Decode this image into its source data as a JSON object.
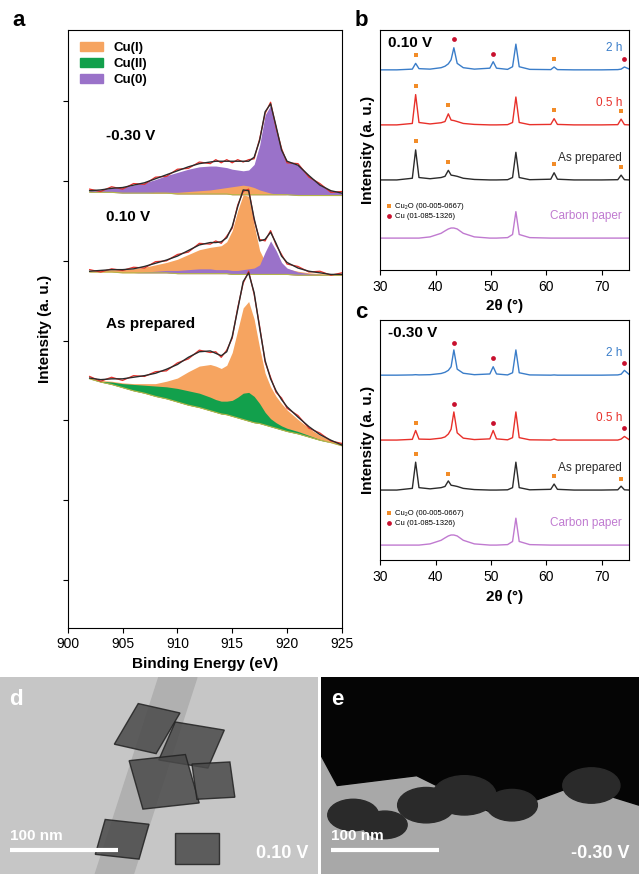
{
  "chart_data": [
    {
      "panel_label": "a",
      "type": "area",
      "xlabel": "Binding Energy (eV)",
      "ylabel": "Intensity (a. u.)",
      "x": [
        902,
        903,
        904,
        905,
        906,
        907,
        908,
        909,
        910,
        911,
        912,
        913,
        913.5,
        914,
        914.5,
        915,
        915.5,
        916,
        916.5,
        917,
        917.5,
        918,
        918.5,
        919,
        919.5,
        920,
        921,
        922,
        923,
        924,
        925
      ],
      "xlim": [
        900,
        925
      ],
      "xticks": [
        900,
        905,
        910,
        915,
        920,
        925
      ],
      "ylim": [
        0,
        7.5
      ],
      "yticks": [
        0.6,
        1.6,
        2.6,
        3.6,
        4.6,
        5.6,
        6.6
      ],
      "tick_labels": "x",
      "legend": "upper left",
      "series": [
        {
          "name": "Cu(I)",
          "color": "#f6a460"
        },
        {
          "name": "Cu(II)",
          "color": "#12a04c"
        },
        {
          "name": "Cu(0)",
          "color": "#9a72c9"
        }
      ],
      "spectra": [
        {
          "label": "-0.30 V",
          "background": [
            5.46,
            5.46,
            5.46,
            5.45,
            5.45,
            5.45,
            5.45,
            5.45,
            5.44,
            5.44,
            5.44,
            5.44,
            5.44,
            5.44,
            5.44,
            5.43,
            5.43,
            5.43,
            5.43,
            5.43,
            5.43,
            5.43,
            5.43,
            5.43,
            5.43,
            5.43,
            5.42,
            5.42,
            5.42,
            5.42,
            5.42
          ],
          "data": [
            5.5,
            5.47,
            5.53,
            5.5,
            5.57,
            5.56,
            5.65,
            5.66,
            5.75,
            5.76,
            5.84,
            5.82,
            5.87,
            5.83,
            5.87,
            5.83,
            5.87,
            5.84,
            5.87,
            5.88,
            6.13,
            6.45,
            6.59,
            6.27,
            6.01,
            5.83,
            5.82,
            5.65,
            5.57,
            5.46,
            5.47
          ],
          "fit": [
            5.48,
            5.49,
            5.51,
            5.52,
            5.55,
            5.58,
            5.63,
            5.68,
            5.73,
            5.78,
            5.82,
            5.84,
            5.85,
            5.85,
            5.85,
            5.85,
            5.85,
            5.85,
            5.85,
            5.9,
            6.11,
            6.47,
            6.57,
            6.29,
            5.99,
            5.85,
            5.8,
            5.67,
            5.55,
            5.48,
            5.45
          ],
          "components": {
            "Cu(0)": [
              5.48,
              5.49,
              5.51,
              5.52,
              5.55,
              5.58,
              5.62,
              5.67,
              5.71,
              5.75,
              5.78,
              5.79,
              5.79,
              5.78,
              5.77,
              5.75,
              5.74,
              5.73,
              5.74,
              5.81,
              6.05,
              6.43,
              6.55,
              6.28,
              5.98,
              5.85,
              5.8,
              5.67,
              5.55,
              5.48,
              5.45
            ],
            "Cu(I)": [
              5.46,
              5.46,
              5.46,
              5.45,
              5.45,
              5.45,
              5.46,
              5.46,
              5.46,
              5.47,
              5.48,
              5.49,
              5.5,
              5.51,
              5.52,
              5.53,
              5.54,
              5.55,
              5.54,
              5.52,
              5.49,
              5.47,
              5.45,
              5.44,
              5.44,
              5.43,
              5.42,
              5.42,
              5.42,
              5.42,
              5.42
            ]
          }
        },
        {
          "label": "0.10 V",
          "background": [
            4.46,
            4.46,
            4.46,
            4.45,
            4.45,
            4.45,
            4.45,
            4.45,
            4.44,
            4.44,
            4.44,
            4.44,
            4.44,
            4.44,
            4.44,
            4.43,
            4.43,
            4.43,
            4.43,
            4.43,
            4.43,
            4.43,
            4.43,
            4.43,
            4.43,
            4.43,
            4.42,
            4.42,
            4.42,
            4.42,
            4.42
          ],
          "data": [
            4.49,
            4.46,
            4.5,
            4.48,
            4.52,
            4.51,
            4.59,
            4.6,
            4.68,
            4.71,
            4.82,
            4.81,
            4.85,
            4.82,
            4.91,
            5.01,
            5.3,
            5.47,
            5.5,
            5.11,
            4.87,
            4.85,
            4.98,
            4.8,
            4.68,
            4.56,
            4.53,
            4.46,
            4.47,
            4.42,
            4.45
          ],
          "fit": [
            4.47,
            4.48,
            4.49,
            4.49,
            4.5,
            4.53,
            4.57,
            4.61,
            4.66,
            4.73,
            4.8,
            4.83,
            4.83,
            4.84,
            4.89,
            5.03,
            5.28,
            5.49,
            5.48,
            5.13,
            4.85,
            4.87,
            4.96,
            4.82,
            4.66,
            4.58,
            4.51,
            4.47,
            4.45,
            4.43,
            4.43
          ],
          "components": {
            "Cu(I)": [
              4.47,
              4.48,
              4.49,
              4.49,
              4.5,
              4.52,
              4.55,
              4.58,
              4.62,
              4.68,
              4.74,
              4.77,
              4.78,
              4.79,
              4.84,
              4.98,
              5.23,
              5.43,
              5.41,
              5.05,
              4.73,
              4.59,
              4.54,
              4.52,
              4.51,
              4.5,
              4.47,
              4.45,
              4.44,
              4.43,
              4.43
            ],
            "Cu(0)": [
              4.46,
              4.46,
              4.46,
              4.45,
              4.45,
              4.46,
              4.47,
              4.48,
              4.48,
              4.49,
              4.5,
              4.5,
              4.49,
              4.49,
              4.49,
              4.48,
              4.48,
              4.49,
              4.5,
              4.51,
              4.55,
              4.71,
              4.85,
              4.73,
              4.58,
              4.51,
              4.46,
              4.44,
              4.43,
              4.42,
              4.42
            ]
          }
        },
        {
          "label": "As prepared",
          "background": [
            3.12,
            3.08,
            3.05,
            3.01,
            2.97,
            2.94,
            2.9,
            2.87,
            2.83,
            2.79,
            2.76,
            2.72,
            2.7,
            2.68,
            2.67,
            2.65,
            2.63,
            2.61,
            2.59,
            2.57,
            2.56,
            2.54,
            2.52,
            2.5,
            2.48,
            2.46,
            2.43,
            2.39,
            2.35,
            2.32,
            2.28
          ],
          "data": [
            3.15,
            3.09,
            3.14,
            3.1,
            3.16,
            3.15,
            3.21,
            3.22,
            3.32,
            3.37,
            3.48,
            3.45,
            3.46,
            3.39,
            3.48,
            3.63,
            4.01,
            4.32,
            4.47,
            4.18,
            3.78,
            3.33,
            3.14,
            2.95,
            2.88,
            2.75,
            2.66,
            2.5,
            2.44,
            2.34,
            2.31
          ],
          "fit": [
            3.13,
            3.11,
            3.12,
            3.12,
            3.14,
            3.16,
            3.19,
            3.24,
            3.3,
            3.39,
            3.46,
            3.47,
            3.44,
            3.41,
            3.46,
            3.65,
            3.99,
            4.34,
            4.45,
            4.2,
            3.76,
            3.35,
            3.12,
            2.97,
            2.86,
            2.77,
            2.64,
            2.52,
            2.42,
            2.35,
            2.29
          ],
          "components": {
            "Cu(I)": [
              3.13,
              3.1,
              3.09,
              3.07,
              3.06,
              3.06,
              3.06,
              3.09,
              3.13,
              3.21,
              3.28,
              3.3,
              3.28,
              3.25,
              3.29,
              3.45,
              3.73,
              4.01,
              4.09,
              3.87,
              3.51,
              3.19,
              3.02,
              2.9,
              2.81,
              2.73,
              2.61,
              2.5,
              2.41,
              2.35,
              2.29
            ],
            "Cu(II)": [
              3.12,
              3.09,
              3.08,
              3.06,
              3.05,
              3.04,
              3.03,
              3.02,
              3.0,
              2.97,
              2.94,
              2.89,
              2.86,
              2.84,
              2.84,
              2.85,
              2.89,
              2.94,
              2.95,
              2.9,
              2.81,
              2.7,
              2.62,
              2.57,
              2.53,
              2.5,
              2.46,
              2.41,
              2.36,
              2.32,
              2.28
            ]
          }
        }
      ]
    },
    {
      "panel_label": "b",
      "type": "line",
      "title": "0.10 V",
      "xlabel": "2θ (°)",
      "ylabel": "Intensity (a. u.)",
      "x": [
        30,
        33,
        35.8,
        36.4,
        37,
        39,
        41,
        41.7,
        42.3,
        42.8,
        43.3,
        43.9,
        45,
        47,
        49.8,
        50.4,
        51,
        53,
        53.9,
        54.5,
        55.1,
        57,
        60.8,
        61.4,
        62,
        65,
        70,
        72.9,
        73.5,
        74.1,
        75
      ],
      "xlim": [
        30,
        75
      ],
      "xticks": [
        30,
        40,
        50,
        60,
        70
      ],
      "ylim": [
        0,
        10
      ],
      "tick_labels": "x",
      "legend": "lower left",
      "series": [
        {
          "name": "2 h",
          "color": "#3a7dc9",
          "values": [
            8.33,
            8.33,
            8.36,
            8.6,
            8.38,
            8.36,
            8.42,
            8.48,
            8.58,
            8.75,
            9.25,
            8.6,
            8.42,
            8.36,
            8.4,
            8.67,
            8.4,
            8.35,
            8.46,
            9.4,
            8.46,
            8.35,
            8.34,
            8.45,
            8.34,
            8.33,
            8.33,
            8.34,
            8.36,
            8.45,
            8.36
          ]
        },
        {
          "name": "0.5 h",
          "color": "#e8302a",
          "values": [
            6.04,
            6.04,
            6.1,
            7.3,
            6.14,
            6.08,
            6.13,
            6.18,
            6.5,
            6.24,
            6.22,
            6.18,
            6.1,
            6.06,
            6.04,
            6.04,
            6.04,
            6.05,
            6.14,
            7.2,
            6.14,
            6.05,
            6.06,
            6.3,
            6.06,
            6.04,
            6.04,
            6.05,
            6.28,
            6.05,
            6.04
          ]
        },
        {
          "name": "As prepared",
          "color": "#2b2b2b",
          "values": [
            3.75,
            3.75,
            3.82,
            5.0,
            3.85,
            3.8,
            3.85,
            3.9,
            4.15,
            3.95,
            3.93,
            3.9,
            3.82,
            3.77,
            3.75,
            3.75,
            3.75,
            3.76,
            3.85,
            4.9,
            3.85,
            3.76,
            3.78,
            4.05,
            3.78,
            3.75,
            3.75,
            3.76,
            3.95,
            3.76,
            3.75
          ]
        },
        {
          "name": "Carbon paper",
          "color": "#c07ad0",
          "values": [
            1.33,
            1.33,
            1.33,
            1.33,
            1.33,
            1.38,
            1.53,
            1.63,
            1.71,
            1.75,
            1.75,
            1.71,
            1.53,
            1.38,
            1.33,
            1.33,
            1.33,
            1.35,
            1.48,
            2.43,
            1.48,
            1.35,
            1.33,
            1.33,
            1.33,
            1.33,
            1.33,
            1.33,
            1.33,
            1.33,
            1.33
          ]
        },
        {
          "name": "Cu₂O (00-005-0667)",
          "type": "scatter",
          "marker": "square",
          "color": "#f28c28",
          "x": [
            36.4,
            42.3,
            61.4,
            73.5,
            36.4,
            42.3,
            61.4,
            73.5,
            36.4,
            61.4
          ],
          "values": [
            5.35,
            4.5,
            4.4,
            4.3,
            7.65,
            6.85,
            6.65,
            6.6,
            8.95,
            8.8
          ]
        },
        {
          "name": "Cu (01-085-1326)",
          "type": "scatter",
          "marker": "circle",
          "color": "#c8102e",
          "x": [
            43.3,
            50.4,
            74.1
          ],
          "values": [
            9.6,
            9.0,
            8.8
          ]
        }
      ]
    },
    {
      "panel_label": "c",
      "type": "line",
      "title": "-0.30 V",
      "xlabel": "2θ (°)",
      "ylabel": "Intensity (a. u.)",
      "x": [
        30,
        33,
        35.8,
        36.4,
        37,
        39,
        41,
        41.7,
        42.3,
        42.8,
        43.3,
        43.9,
        45,
        47,
        49.8,
        50.4,
        51,
        53,
        53.9,
        54.5,
        55.1,
        57,
        60.8,
        61.4,
        62,
        65,
        70,
        72.9,
        73.5,
        74.1,
        75
      ],
      "xlim": [
        30,
        75
      ],
      "xticks": [
        30,
        40,
        50,
        60,
        70
      ],
      "ylim": [
        0,
        10
      ],
      "tick_labels": "x",
      "legend": "lower left",
      "series": [
        {
          "name": "2 h",
          "color": "#3a7dc9",
          "values": [
            7.7,
            7.7,
            7.71,
            7.72,
            7.71,
            7.72,
            7.77,
            7.82,
            7.9,
            8.05,
            8.75,
            7.95,
            7.78,
            7.72,
            7.75,
            8.05,
            7.75,
            7.71,
            7.8,
            8.75,
            7.8,
            7.71,
            7.7,
            7.71,
            7.7,
            7.7,
            7.7,
            7.71,
            7.74,
            7.9,
            7.72
          ]
        },
        {
          "name": "0.5 h",
          "color": "#e8302a",
          "values": [
            5.0,
            5.0,
            5.03,
            5.4,
            5.04,
            5.03,
            5.08,
            5.13,
            5.25,
            5.45,
            6.17,
            5.3,
            5.08,
            5.02,
            5.05,
            5.4,
            5.05,
            5.01,
            5.1,
            6.17,
            5.1,
            5.01,
            5.0,
            5.04,
            5.0,
            5.0,
            5.0,
            5.0,
            5.04,
            5.15,
            5.01
          ]
        },
        {
          "name": "As prepared",
          "color": "#2b2b2b",
          "values": [
            2.92,
            2.92,
            2.99,
            4.08,
            3.02,
            2.97,
            3.02,
            3.07,
            3.3,
            3.12,
            3.1,
            3.07,
            2.99,
            2.94,
            2.92,
            2.92,
            2.92,
            2.93,
            3.02,
            4.08,
            3.02,
            2.93,
            2.95,
            3.17,
            2.95,
            2.92,
            2.92,
            2.93,
            3.08,
            2.93,
            2.92
          ]
        },
        {
          "name": "Carbon paper",
          "color": "#c07ad0",
          "values": [
            0.63,
            0.63,
            0.63,
            0.63,
            0.63,
            0.68,
            0.83,
            0.93,
            1.01,
            1.05,
            1.05,
            1.01,
            0.83,
            0.68,
            0.63,
            0.63,
            0.63,
            0.65,
            0.78,
            1.75,
            0.78,
            0.65,
            0.63,
            0.63,
            0.63,
            0.63,
            0.63,
            0.63,
            0.63,
            0.63,
            0.63
          ]
        },
        {
          "name": "Cu₂O (00-005-0667)",
          "type": "scatter",
          "marker": "square",
          "color": "#f28c28",
          "x": [
            36.4,
            42.3,
            61.4,
            73.5,
            36.4
          ],
          "values": [
            4.4,
            3.6,
            3.5,
            3.4,
            5.7
          ]
        },
        {
          "name": "Cu (01-085-1326)",
          "type": "scatter",
          "marker": "circle",
          "color": "#c8102e",
          "x": [
            43.3,
            50.4,
            74.1,
            43.3,
            50.4,
            74.1
          ],
          "values": [
            6.5,
            5.7,
            5.5,
            9.05,
            8.4,
            8.2
          ]
        }
      ]
    }
  ],
  "images": [
    {
      "panel_label": "d",
      "scale_bar": "100 nm",
      "potential": "0.10 V"
    },
    {
      "panel_label": "e",
      "scale_bar": "100 nm",
      "potential": "-0.30 V"
    }
  ]
}
